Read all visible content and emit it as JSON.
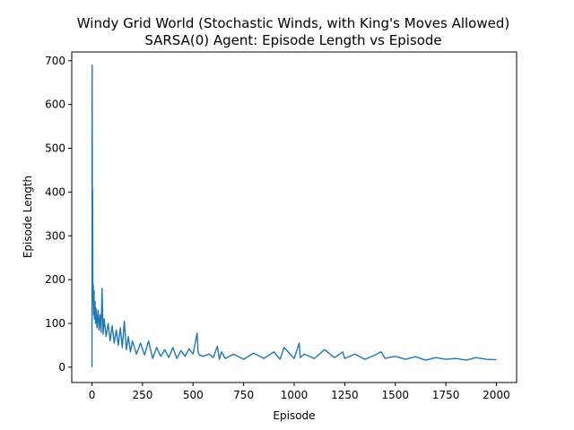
{
  "chart_data": {
    "type": "line",
    "title": "Windy Grid World (Stochastic Winds, with King's Moves Allowed)",
    "subtitle": "SARSA(0) Agent: Episode Length vs Episode",
    "xlabel": "Episode",
    "ylabel": "Episode Length",
    "xlim": [
      -100,
      2100
    ],
    "ylim": [
      -35,
      720
    ],
    "xticks": [
      0,
      250,
      500,
      750,
      1000,
      1250,
      1500,
      1750,
      2000
    ],
    "yticks": [
      0,
      100,
      200,
      300,
      400,
      500,
      600,
      700
    ],
    "grid": false,
    "legend": "none",
    "series_color": "#1f77b4",
    "series": [
      {
        "x": [
          0,
          1,
          2,
          3,
          4,
          5,
          6,
          8,
          10,
          12,
          15,
          18,
          20,
          25,
          30,
          35,
          40,
          45,
          50,
          55,
          60,
          70,
          80,
          90,
          100,
          110,
          120,
          130,
          140,
          150,
          160,
          170,
          180,
          190,
          200,
          220,
          240,
          260,
          280,
          300,
          320,
          340,
          360,
          380,
          400,
          420,
          440,
          460,
          480,
          500,
          520,
          525,
          530,
          550,
          580,
          600,
          620,
          630,
          640,
          660,
          700,
          750,
          800,
          850,
          900,
          930,
          950,
          1000,
          1025,
          1030,
          1050,
          1100,
          1150,
          1200,
          1240,
          1250,
          1300,
          1350,
          1400,
          1430,
          1450,
          1500,
          1550,
          1600,
          1650,
          1700,
          1750,
          1800,
          1850,
          1900,
          1950,
          2000
        ],
        "values": [
          0,
          690,
          300,
          405,
          200,
          150,
          190,
          120,
          175,
          110,
          150,
          100,
          135,
          90,
          130,
          85,
          120,
          80,
          180,
          75,
          110,
          70,
          100,
          60,
          95,
          55,
          85,
          50,
          90,
          45,
          105,
          40,
          70,
          35,
          60,
          30,
          55,
          28,
          60,
          20,
          45,
          25,
          40,
          22,
          45,
          20,
          38,
          25,
          42,
          30,
          78,
          35,
          28,
          25,
          30,
          22,
          48,
          18,
          35,
          20,
          30,
          18,
          32,
          20,
          35,
          18,
          45,
          20,
          55,
          22,
          30,
          20,
          40,
          22,
          35,
          20,
          30,
          18,
          28,
          35,
          20,
          25,
          18,
          24,
          16,
          22,
          18,
          20,
          16,
          22,
          18,
          17
        ]
      }
    ]
  }
}
